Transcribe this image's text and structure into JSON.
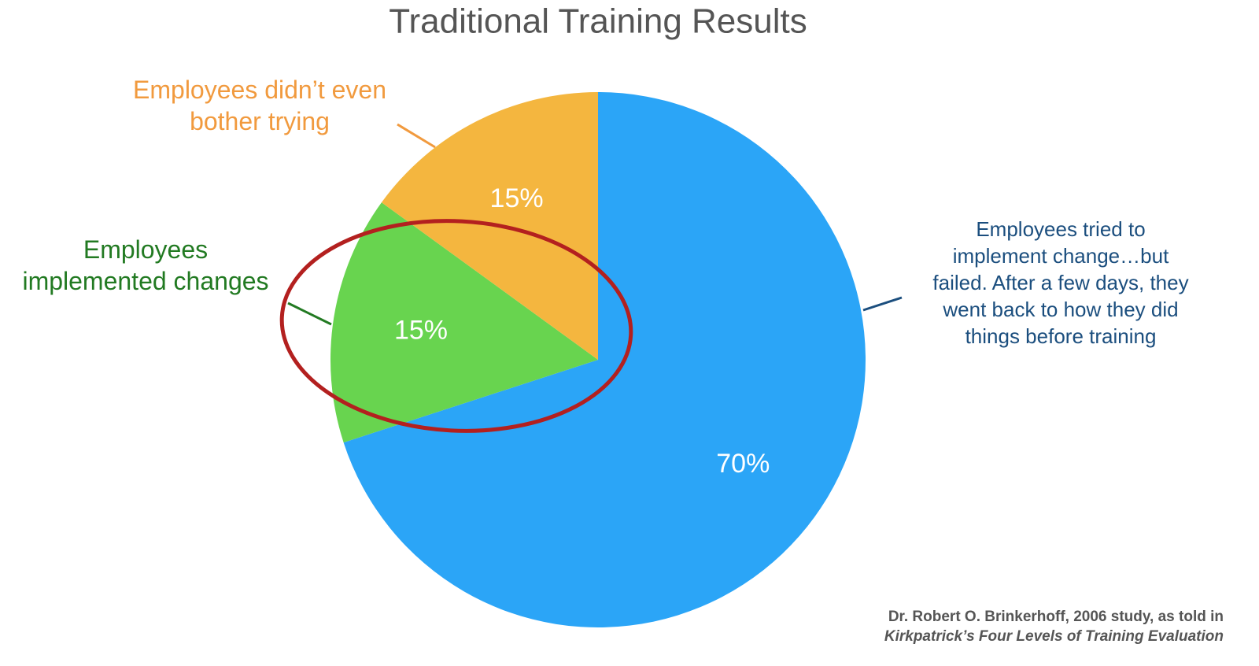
{
  "chart_data": {
    "type": "pie",
    "title": "Traditional Training Results",
    "categories": [
      "Employees tried to\nimplement change…but\nfailed. After a few days, they\nwent back to how they did\nthings before training",
      "Employees\nimplemented changes",
      "Employees didn’t even\nbother trying"
    ],
    "values": [
      70,
      15,
      15
    ],
    "value_labels": [
      "70%",
      "15%",
      "15%"
    ],
    "colors": [
      "#2ba5f7",
      "#68d44f",
      "#f4b63f"
    ],
    "label_colors": [
      "#1b4e7e",
      "#227a22",
      "#f19a3e"
    ],
    "source": [
      "Dr. Robert O. Brinkerhoff, 2006 study, as told in",
      "Kirkpatrick’s Four Levels of Training Evaluation"
    ]
  }
}
